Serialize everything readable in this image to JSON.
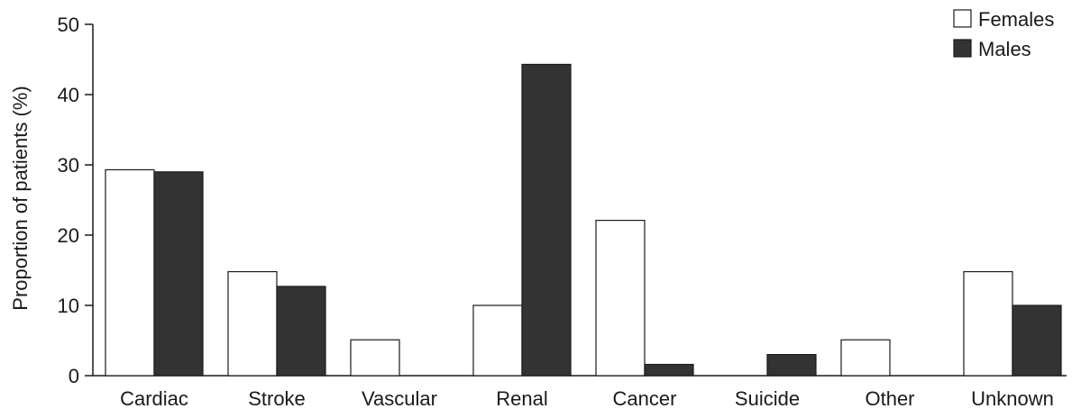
{
  "chart_data": {
    "type": "bar",
    "title": "",
    "xlabel": "",
    "ylabel": "Proportion of patients (%)",
    "ylim": [
      0,
      50
    ],
    "yticks": [
      0,
      10,
      20,
      30,
      40,
      50
    ],
    "categories": [
      "Cardiac",
      "Stroke",
      "Vascular",
      "Renal",
      "Cancer",
      "Suicide",
      "Other",
      "Unknown"
    ],
    "series": [
      {
        "name": "Females",
        "color": "#ffffff",
        "values": [
          29.3,
          14.8,
          5.1,
          10.0,
          22.1,
          0,
          5.1,
          14.8
        ]
      },
      {
        "name": "Males",
        "color": "#333333",
        "values": [
          29.0,
          12.7,
          0,
          44.3,
          1.6,
          3.0,
          0,
          10.0
        ]
      }
    ],
    "legend_position": "top-right",
    "grid": false
  }
}
